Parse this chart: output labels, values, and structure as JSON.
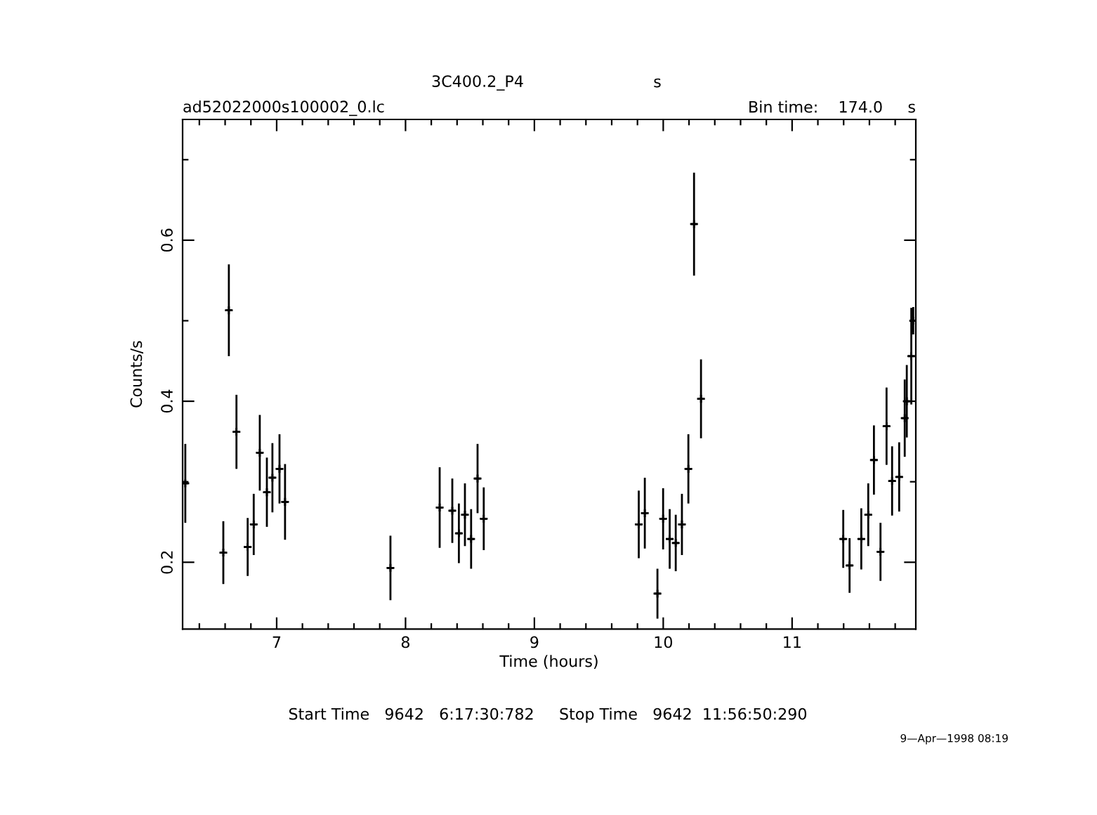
{
  "chart_data": {
    "type": "scatter",
    "title": "3C400.2_P4",
    "xlabel": "Time (hours)",
    "ylabel": "Counts/s",
    "annotations": [
      "s",
      "ad52022000s100002_0.lc",
      "Bin time:    174.0     s",
      "Start Time   9642   6:17:30:782     Stop Time   9642  11:56:50:290",
      "9—Apr—1998 08:19"
    ],
    "xlim": [
      6.27,
      11.96
    ],
    "ylim": [
      0.117,
      0.75
    ],
    "xticks": [
      {
        "value": 6.4,
        "label": null
      },
      {
        "value": 6.6,
        "label": null
      },
      {
        "value": 6.8,
        "label": null
      },
      7,
      {
        "value": 7.2,
        "label": null
      },
      {
        "value": 7.4,
        "label": null
      },
      {
        "value": 7.6,
        "label": null
      },
      {
        "value": 7.8,
        "label": null
      },
      8,
      {
        "value": 8.2,
        "label": null
      },
      {
        "value": 8.4,
        "label": null
      },
      {
        "value": 8.6,
        "label": null
      },
      {
        "value": 8.8,
        "label": null
      },
      9,
      {
        "value": 9.2,
        "label": null
      },
      {
        "value": 9.4,
        "label": null
      },
      {
        "value": 9.6,
        "label": null
      },
      {
        "value": 9.8,
        "label": null
      },
      10,
      {
        "value": 10.2,
        "label": null
      },
      {
        "value": 10.4,
        "label": null
      },
      {
        "value": 10.6,
        "label": null
      },
      {
        "value": 10.8,
        "label": null
      },
      11,
      {
        "value": 11.2,
        "label": null
      },
      {
        "value": 11.4,
        "label": null
      },
      {
        "value": 11.6,
        "label": null
      },
      {
        "value": 11.8,
        "label": null
      }
    ],
    "yticks": [
      0.2,
      {
        "value": 0.3,
        "label": null
      },
      0.4,
      {
        "value": 0.5,
        "label": null
      },
      0.6,
      {
        "value": 0.7,
        "label": null
      }
    ],
    "grid": false,
    "marker": "cross",
    "series": [
      {
        "color": "#000000",
        "x": [
          6.291,
          6.586,
          6.629,
          6.688,
          6.775,
          6.822,
          6.869,
          6.924,
          6.967,
          7.022,
          7.065,
          7.883,
          8.265,
          8.363,
          8.414,
          8.461,
          8.509,
          8.559,
          8.607,
          9.81,
          9.857,
          9.955,
          9.999,
          10.05,
          10.097,
          10.145,
          10.195,
          10.239,
          10.293,
          11.397,
          11.446,
          11.537,
          11.591,
          11.635,
          11.686,
          11.733,
          11.776,
          11.831,
          11.874,
          11.89,
          11.925,
          11.94
        ],
        "values": [
          0.298,
          0.212,
          0.513,
          0.362,
          0.219,
          0.247,
          0.336,
          0.287,
          0.305,
          0.316,
          0.275,
          0.193,
          0.268,
          0.264,
          0.236,
          0.259,
          0.229,
          0.304,
          0.254,
          0.247,
          0.261,
          0.161,
          0.254,
          0.229,
          0.224,
          0.247,
          0.316,
          0.62,
          0.403,
          0.229,
          0.196,
          0.229,
          0.259,
          0.327,
          0.213,
          0.369,
          0.301,
          0.306,
          0.379,
          0.4,
          0.456,
          0.5
        ],
        "errors": [
          0.049,
          0.039,
          0.057,
          0.046,
          0.036,
          0.038,
          0.047,
          0.043,
          0.043,
          0.043,
          0.047,
          0.04,
          0.05,
          0.04,
          0.037,
          0.039,
          0.037,
          0.043,
          0.039,
          0.042,
          0.044,
          0.031,
          0.038,
          0.037,
          0.035,
          0.038,
          0.043,
          0.064,
          0.049,
          0.036,
          0.034,
          0.038,
          0.039,
          0.043,
          0.036,
          0.048,
          0.043,
          0.043,
          0.048,
          0.045,
          0.06,
          0.017
        ],
        "xerrors": [
          0.024,
          0.024,
          0.024,
          0.024,
          0.024,
          0.024,
          0.024,
          0.024,
          0.024,
          0.024,
          0.024,
          0.024,
          0.024,
          0.024,
          0.024,
          0.024,
          0.024,
          0.024,
          0.024,
          0.024,
          0.024,
          0.024,
          0.024,
          0.024,
          0.024,
          0.024,
          0.024,
          0.024,
          0.024,
          0.024,
          0.024,
          0.024,
          0.024,
          0.024,
          0.024,
          0.024,
          0.024,
          0.024,
          0.024,
          0.024,
          0.024,
          0.024
        ]
      }
    ]
  }
}
